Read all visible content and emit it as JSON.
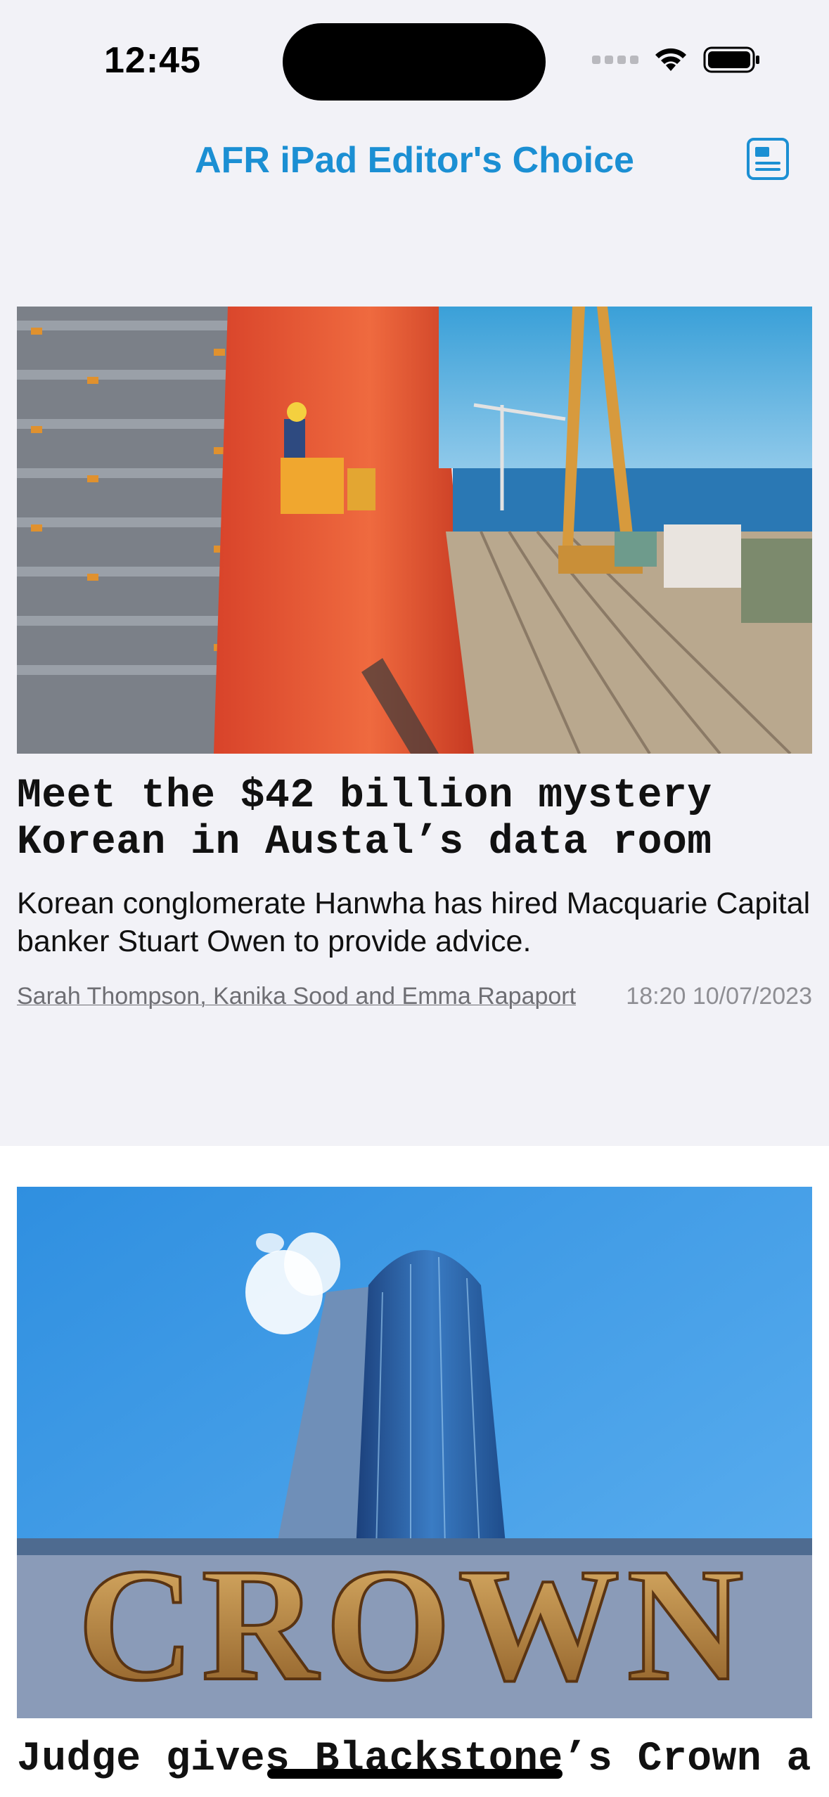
{
  "status_bar": {
    "time": "12:45",
    "icons": [
      "cellular-signal-icon",
      "wifi-icon",
      "battery-icon"
    ]
  },
  "nav": {
    "title": "AFR iPad Editor's Choice",
    "action_icon": "document-icon",
    "accent_color": "#1b8fd3"
  },
  "articles": [
    {
      "image": "shipyard-photo",
      "headline": "Meet the $42 billion mystery Korean in Austal’s data room",
      "summary": "Korean conglomerate Hanwha has hired Macquarie Capital banker Stuart Owen to provide advice.",
      "byline": "Sarah Thompson, Kanika Sood and Emma Rapaport",
      "timestamp": "18:20 10/07/2023"
    },
    {
      "image": "crown-tower-photo",
      "headline": "Judge gives Blackstone’s Crown a"
    }
  ]
}
